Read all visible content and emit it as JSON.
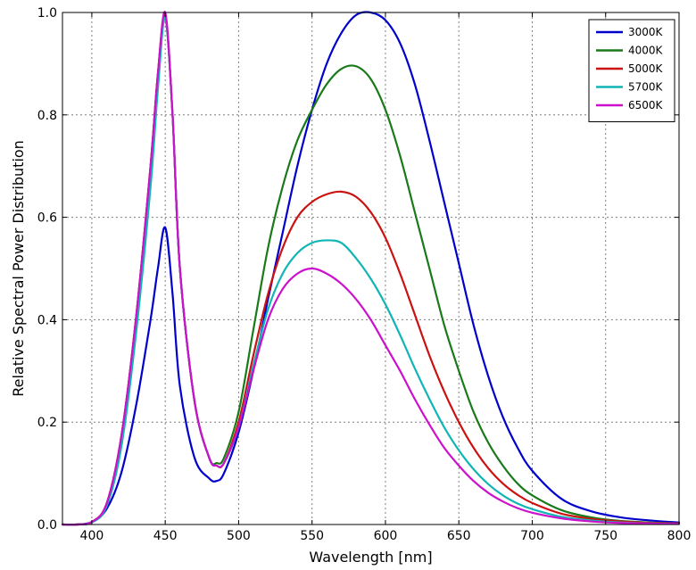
{
  "chart_data": {
    "type": "line",
    "title": "",
    "xlabel": "Wavelength [nm]",
    "ylabel": "Relative Spectral Power Distribution",
    "xlim": [
      380,
      800
    ],
    "ylim": [
      0.0,
      1.0
    ],
    "xticks": [
      400,
      450,
      500,
      550,
      600,
      650,
      700,
      750,
      800
    ],
    "yticks": [
      0.0,
      0.2,
      0.4,
      0.6,
      0.8,
      1.0
    ],
    "xtick_labels": [
      "400",
      "450",
      "500",
      "550",
      "600",
      "650",
      "700",
      "750",
      "800"
    ],
    "ytick_labels": [
      "0.0",
      "0.2",
      "0.4",
      "0.6",
      "0.8",
      "1.0"
    ],
    "grid": true,
    "legend_position": "top-right",
    "x": [
      380,
      390,
      400,
      410,
      420,
      430,
      440,
      445,
      450,
      455,
      460,
      470,
      480,
      485,
      490,
      500,
      510,
      520,
      530,
      540,
      550,
      560,
      570,
      580,
      590,
      600,
      610,
      620,
      630,
      640,
      650,
      660,
      670,
      680,
      690,
      700,
      720,
      740,
      760,
      780,
      800
    ],
    "series": [
      {
        "name": "3000K",
        "color": "#0000cc",
        "values": [
          0.0,
          0.0,
          0.005,
          0.03,
          0.1,
          0.23,
          0.4,
          0.5,
          0.58,
          0.45,
          0.27,
          0.13,
          0.09,
          0.085,
          0.1,
          0.18,
          0.3,
          0.44,
          0.57,
          0.7,
          0.81,
          0.9,
          0.96,
          0.995,
          1.0,
          0.985,
          0.94,
          0.86,
          0.75,
          0.63,
          0.51,
          0.39,
          0.29,
          0.21,
          0.15,
          0.105,
          0.05,
          0.026,
          0.014,
          0.008,
          0.004
        ]
      },
      {
        "name": "4000K",
        "color": "#1a7a1a",
        "values": [
          0.0,
          0.0,
          0.005,
          0.04,
          0.17,
          0.4,
          0.7,
          0.88,
          0.99,
          0.8,
          0.5,
          0.24,
          0.13,
          0.12,
          0.13,
          0.22,
          0.38,
          0.54,
          0.66,
          0.75,
          0.81,
          0.86,
          0.89,
          0.895,
          0.87,
          0.81,
          0.72,
          0.61,
          0.5,
          0.39,
          0.3,
          0.22,
          0.16,
          0.115,
          0.08,
          0.057,
          0.028,
          0.014,
          0.007,
          0.004,
          0.002
        ]
      },
      {
        "name": "5000K",
        "color": "#cc1111",
        "values": [
          0.0,
          0.0,
          0.005,
          0.04,
          0.17,
          0.4,
          0.7,
          0.88,
          0.995,
          0.8,
          0.5,
          0.24,
          0.13,
          0.115,
          0.12,
          0.2,
          0.33,
          0.45,
          0.54,
          0.6,
          0.63,
          0.645,
          0.65,
          0.64,
          0.61,
          0.56,
          0.49,
          0.41,
          0.33,
          0.26,
          0.2,
          0.15,
          0.11,
          0.08,
          0.058,
          0.042,
          0.021,
          0.011,
          0.006,
          0.003,
          0.002
        ]
      },
      {
        "name": "5700K",
        "color": "#11b5b5",
        "values": [
          0.0,
          0.0,
          0.004,
          0.035,
          0.15,
          0.37,
          0.66,
          0.85,
          0.99,
          0.8,
          0.5,
          0.24,
          0.13,
          0.115,
          0.12,
          0.19,
          0.31,
          0.42,
          0.49,
          0.53,
          0.55,
          0.555,
          0.55,
          0.52,
          0.48,
          0.43,
          0.37,
          0.305,
          0.245,
          0.19,
          0.145,
          0.108,
          0.079,
          0.057,
          0.041,
          0.03,
          0.015,
          0.008,
          0.004,
          0.002,
          0.001
        ]
      },
      {
        "name": "6500K",
        "color": "#cc11cc",
        "values": [
          0.0,
          0.0,
          0.005,
          0.04,
          0.17,
          0.4,
          0.7,
          0.88,
          1.0,
          0.8,
          0.5,
          0.24,
          0.13,
          0.115,
          0.12,
          0.19,
          0.3,
          0.4,
          0.46,
          0.49,
          0.5,
          0.49,
          0.47,
          0.44,
          0.4,
          0.35,
          0.3,
          0.245,
          0.195,
          0.15,
          0.115,
          0.085,
          0.062,
          0.045,
          0.032,
          0.023,
          0.012,
          0.006,
          0.003,
          0.002,
          0.001
        ]
      }
    ]
  }
}
